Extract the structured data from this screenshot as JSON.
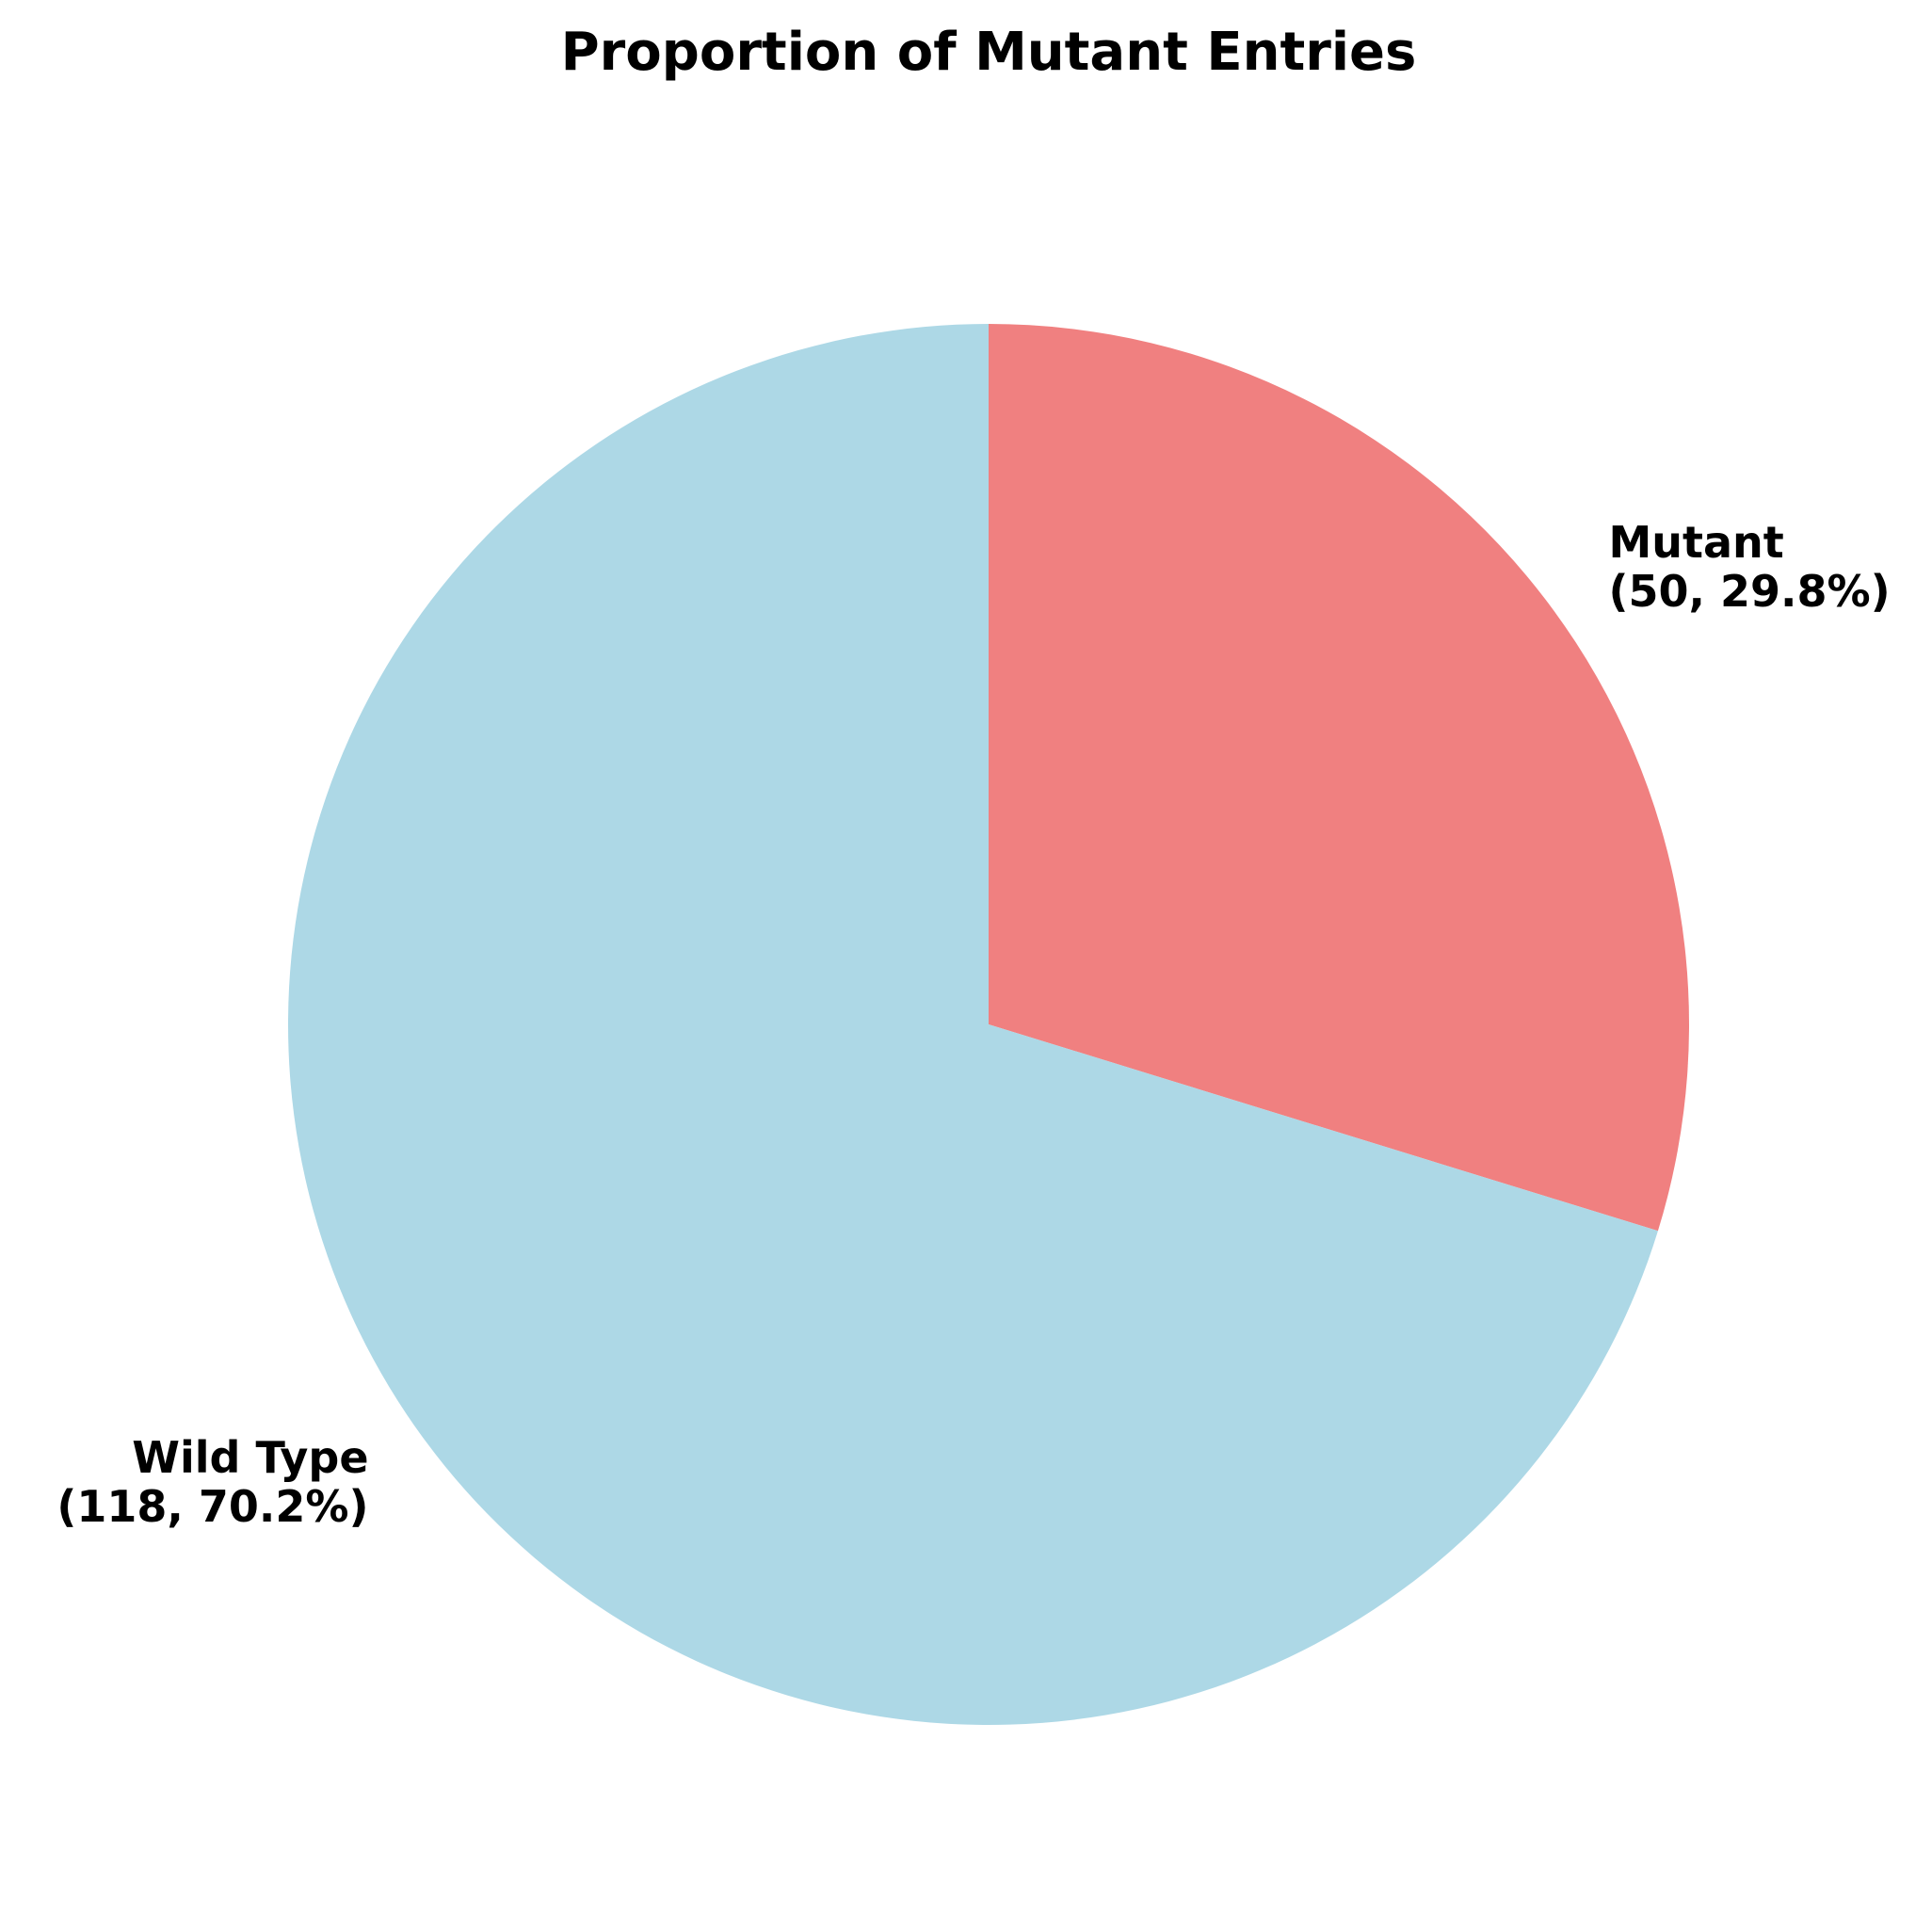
{
  "chart_data": {
    "type": "pie",
    "title": "Proportion of Mutant Entries",
    "startangle_deg": 90,
    "direction": "clockwise",
    "slices": [
      {
        "label": "Mutant",
        "value": 50,
        "percent": 29.8,
        "line1": "Mutant",
        "line2": "(50, 29.8%)",
        "color": "#f08080"
      },
      {
        "label": "Wild Type",
        "value": 118,
        "percent": 70.2,
        "line1": "Wild Type",
        "line2": "(118, 70.2%)",
        "color": "#add8e6"
      }
    ]
  }
}
